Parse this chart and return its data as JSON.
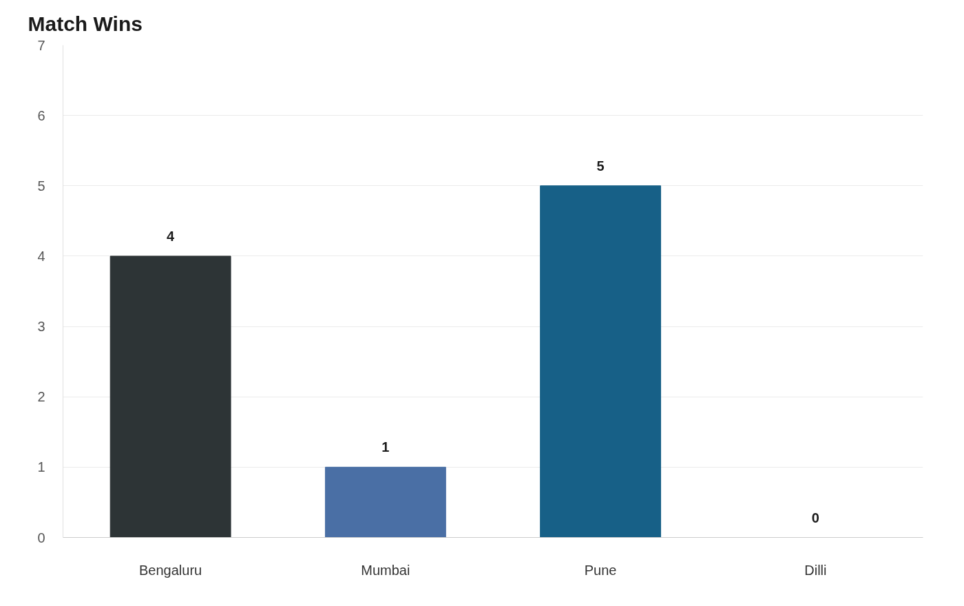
{
  "chart_data": {
    "type": "bar",
    "title": "Match Wins",
    "categories": [
      "Bengaluru",
      "Mumbai",
      "Pune",
      "Dilli"
    ],
    "values": [
      4,
      1,
      5,
      0
    ],
    "colors": [
      "#2d3436",
      "#4a6fa5",
      "#176087",
      "#3d8eb9"
    ],
    "ylim": [
      0,
      7
    ],
    "yticks": [
      0,
      1,
      2,
      3,
      4,
      5,
      6,
      7
    ],
    "grid": "y",
    "data_labels": true
  }
}
